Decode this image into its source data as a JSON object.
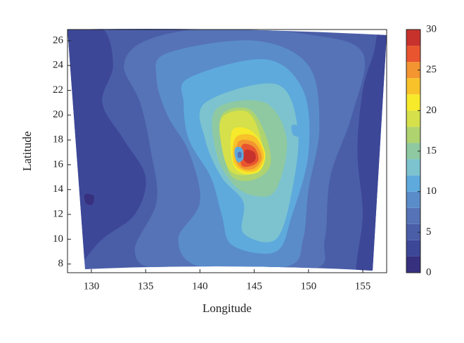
{
  "chart_data": {
    "type": "contour",
    "xlabel": "Longitude",
    "ylabel": "Latitude",
    "xlim": [
      127.8,
      157.2
    ],
    "ylim": [
      7.3,
      26.9
    ],
    "xticks": [
      130,
      135,
      140,
      145,
      150,
      155
    ],
    "yticks": [
      8,
      10,
      12,
      14,
      16,
      18,
      20,
      22,
      24,
      26
    ],
    "levels": [
      0,
      2,
      4,
      6,
      8,
      10,
      12,
      14,
      16,
      18,
      20,
      22,
      24,
      26,
      28,
      30
    ],
    "colors": [
      "#36307e",
      "#3d4797",
      "#4a5ea8",
      "#5573b6",
      "#5a8cca",
      "#5eaadd",
      "#7cc3cf",
      "#8fc9a2",
      "#aed36f",
      "#d5e04a",
      "#f6ea2a",
      "#f8c22a",
      "#f39530",
      "#e9552e",
      "#c7322c"
    ],
    "colorbar_ticks": [
      0,
      5,
      10,
      15,
      20,
      25,
      30
    ]
  }
}
